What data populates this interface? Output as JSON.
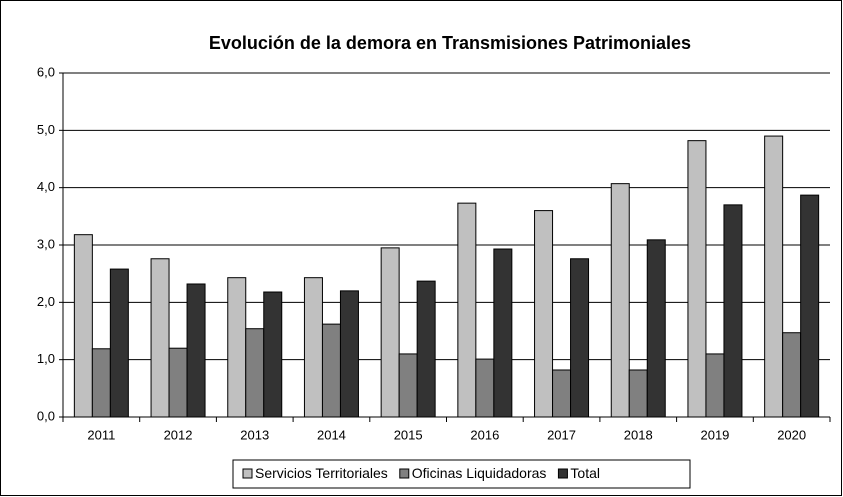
{
  "chart_data": {
    "type": "bar",
    "title": "Evolución de la demora en Transmisiones Patrimoniales",
    "categories": [
      "2011",
      "2012",
      "2013",
      "2014",
      "2015",
      "2016",
      "2017",
      "2018",
      "2019",
      "2020"
    ],
    "series": [
      {
        "name": "Servicios Territoriales",
        "color": "#c0c0c0",
        "values": [
          3.18,
          2.76,
          2.43,
          2.43,
          2.95,
          3.73,
          3.6,
          4.07,
          4.82,
          4.9
        ]
      },
      {
        "name": "Oficinas Liquidadoras",
        "color": "#808080",
        "values": [
          1.19,
          1.2,
          1.54,
          1.62,
          1.1,
          1.01,
          0.82,
          0.82,
          1.1,
          1.47
        ]
      },
      {
        "name": "Total",
        "color": "#333333",
        "values": [
          2.58,
          2.32,
          2.18,
          2.2,
          2.37,
          2.93,
          2.76,
          3.09,
          3.7,
          3.87
        ]
      }
    ],
    "ylim": [
      0,
      6
    ],
    "yticks": [
      {
        "value": 0,
        "label": "0,0"
      },
      {
        "value": 1,
        "label": "1,0"
      },
      {
        "value": 2,
        "label": "2,0"
      },
      {
        "value": 3,
        "label": "3,0"
      },
      {
        "value": 4,
        "label": "4,0"
      },
      {
        "value": 5,
        "label": "5,0"
      },
      {
        "value": 6,
        "label": "6,0"
      }
    ],
    "grid": true,
    "legend": "bottom"
  }
}
